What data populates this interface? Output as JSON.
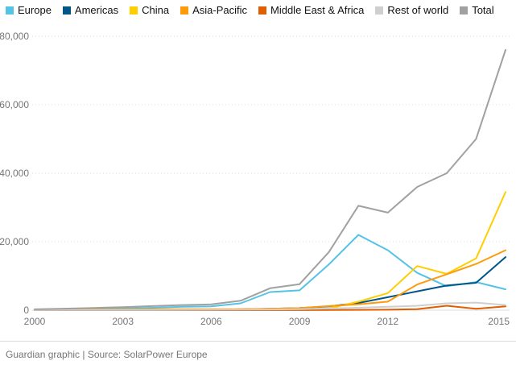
{
  "chart_data": {
    "type": "line",
    "title": "",
    "xlabel": "",
    "ylabel": "",
    "x": [
      2000,
      2001,
      2002,
      2003,
      2004,
      2005,
      2006,
      2007,
      2008,
      2009,
      2010,
      2011,
      2012,
      2013,
      2014,
      2015,
      2016
    ],
    "xlim": [
      2000,
      2016
    ],
    "ylim": [
      0,
      80000
    ],
    "x_ticks": [
      {
        "value": 2000,
        "label": "2000"
      },
      {
        "value": 2003,
        "label": "2003"
      },
      {
        "value": 2006,
        "label": "2006"
      },
      {
        "value": 2009,
        "label": "2009"
      },
      {
        "value": 2012,
        "label": "2012"
      },
      {
        "value": 2015,
        "label": "2015"
      }
    ],
    "y_ticks": [
      {
        "value": 0,
        "label": "0"
      },
      {
        "value": 20000,
        "label": "20,000"
      },
      {
        "value": 40000,
        "label": "40,000"
      },
      {
        "value": 60000,
        "label": "60,000"
      },
      {
        "value": 80000,
        "label": "80,000"
      }
    ],
    "grid": "horizontal-dotted",
    "legend_position": "top",
    "series": [
      {
        "name": "Europe",
        "color": "#54c3e6",
        "values": [
          100,
          250,
          350,
          500,
          700,
          1000,
          1100,
          2000,
          5300,
          5800,
          13400,
          22000,
          17500,
          10900,
          7000,
          8200,
          6100
        ]
      },
      {
        "name": "Americas",
        "color": "#005689",
        "values": [
          20,
          30,
          50,
          80,
          100,
          120,
          150,
          250,
          400,
          600,
          1100,
          2100,
          3800,
          5500,
          7200,
          8000,
          15500
        ]
      },
      {
        "name": "China",
        "color": "#ffce00",
        "values": [
          0,
          5,
          10,
          10,
          10,
          10,
          10,
          20,
          50,
          200,
          500,
          2500,
          5000,
          12900,
          10600,
          15100,
          34500
        ]
      },
      {
        "name": "Asia-Pacific",
        "color": "#ff9b0b",
        "values": [
          100,
          130,
          170,
          220,
          270,
          300,
          300,
          300,
          400,
          600,
          1200,
          1700,
          2500,
          7500,
          10500,
          13500,
          17500
        ]
      },
      {
        "name": "Middle East & Africa",
        "color": "#e05e00",
        "values": [
          0,
          0,
          0,
          0,
          10,
          10,
          10,
          10,
          20,
          30,
          50,
          100,
          150,
          300,
          1300,
          400,
          1100
        ]
      },
      {
        "name": "Rest of world",
        "color": "#cfcfcf",
        "values": [
          30,
          40,
          50,
          60,
          80,
          100,
          120,
          150,
          200,
          300,
          500,
          700,
          1000,
          1300,
          2000,
          2200,
          1500
        ]
      },
      {
        "name": "Total",
        "color": "#a1a1a1",
        "values": [
          250,
          450,
          650,
          900,
          1200,
          1500,
          1700,
          2750,
          6400,
          7600,
          17000,
          30500,
          28500,
          36000,
          40000,
          50000,
          76000
        ]
      }
    ]
  },
  "footer": {
    "caption": "Guardian graphic | Source: SolarPower Europe"
  },
  "colors": {
    "background": "#ffffff",
    "grid": "#dcdcdc",
    "axis_text": "#767676",
    "legend_text": "#121212"
  }
}
